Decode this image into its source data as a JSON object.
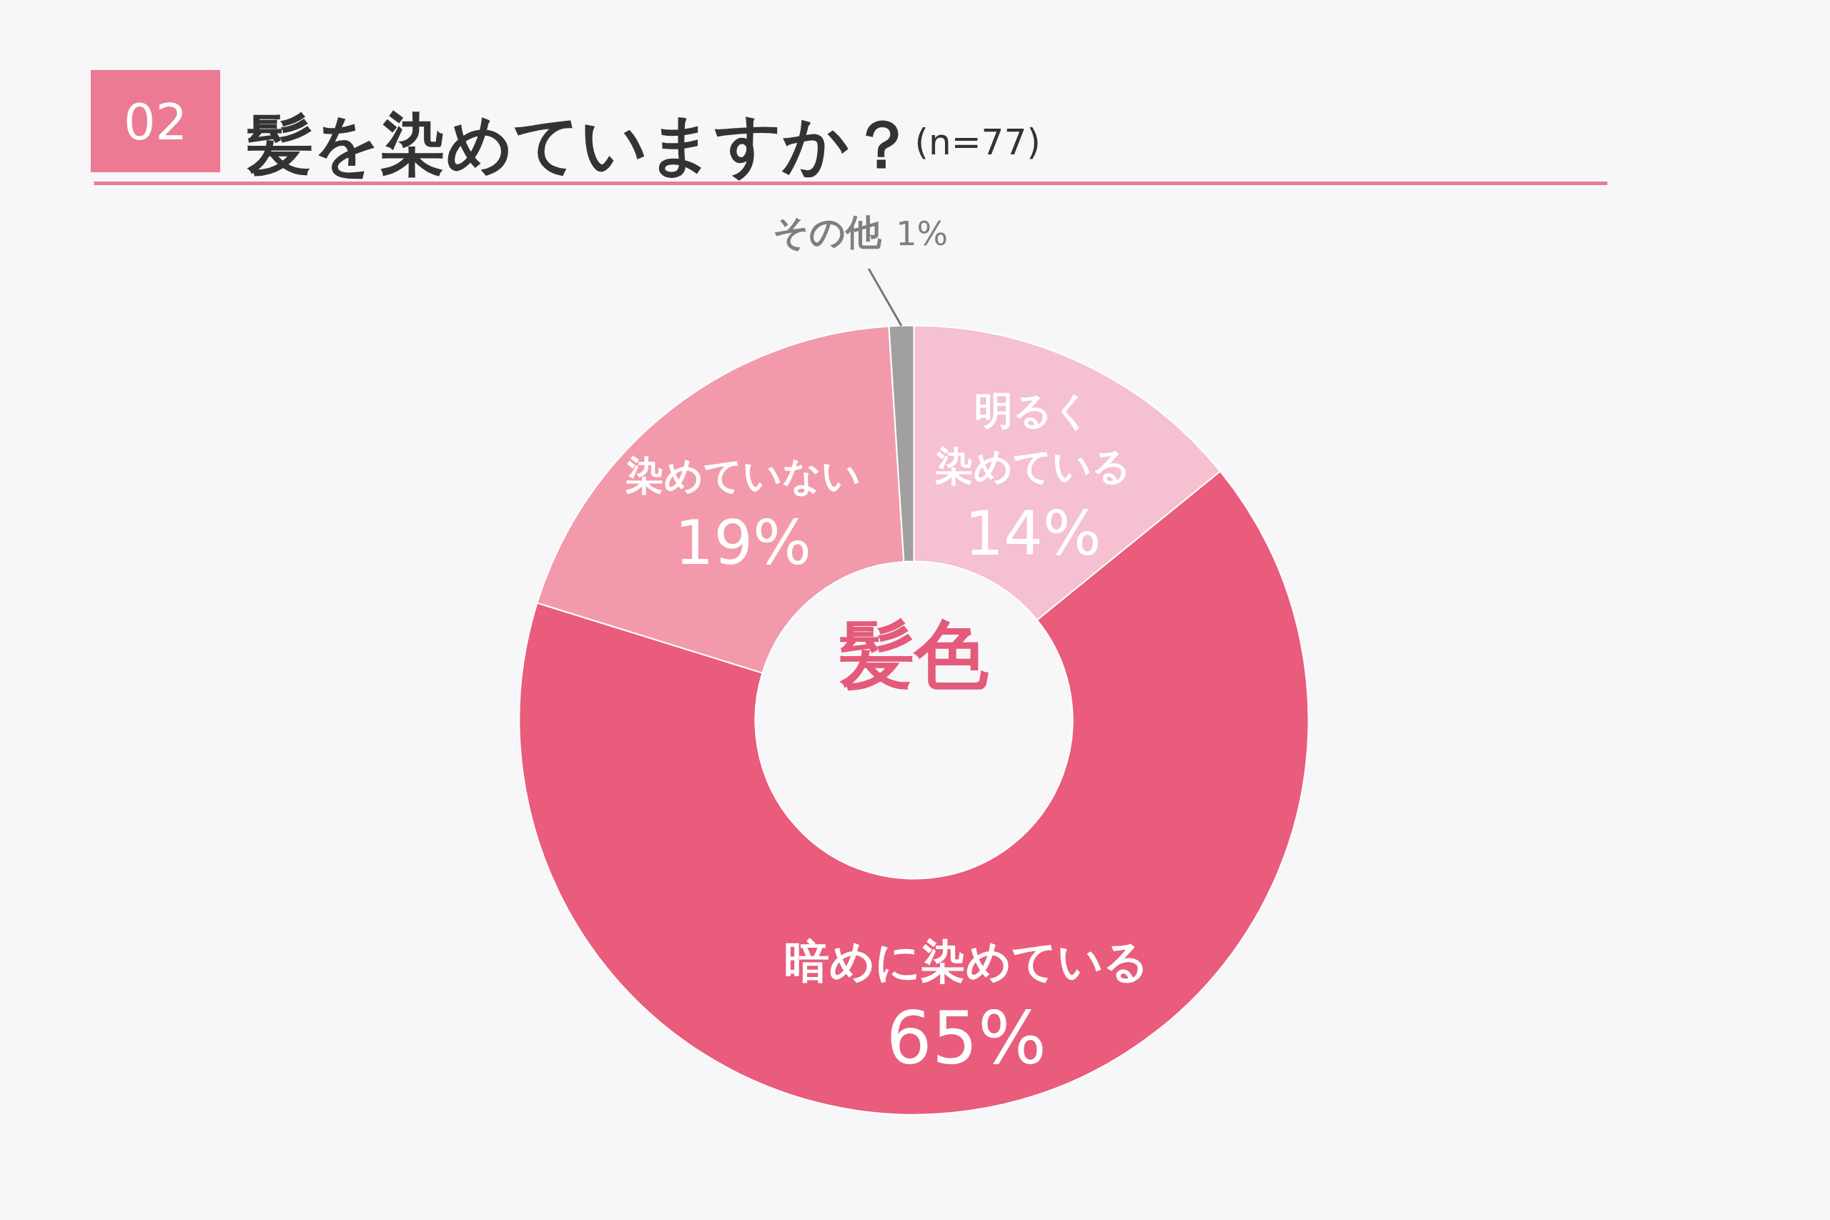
{
  "chart_data": {
    "type": "donut",
    "title": "髪を染めていますか？",
    "subtitle": "(n=77)",
    "annotations": [
      "02",
      "髪色"
    ],
    "categories": [
      "明るく染めている",
      "暗めに染めている",
      "染めていない",
      "その他"
    ],
    "values": [
      14,
      65,
      19,
      1
    ],
    "colors": [
      "#f5c0cf",
      "#e95c7b",
      "#f29aab",
      "#a0a0a0"
    ],
    "value_labels": [
      "14%",
      "65%",
      "19%",
      "1%"
    ]
  }
}
